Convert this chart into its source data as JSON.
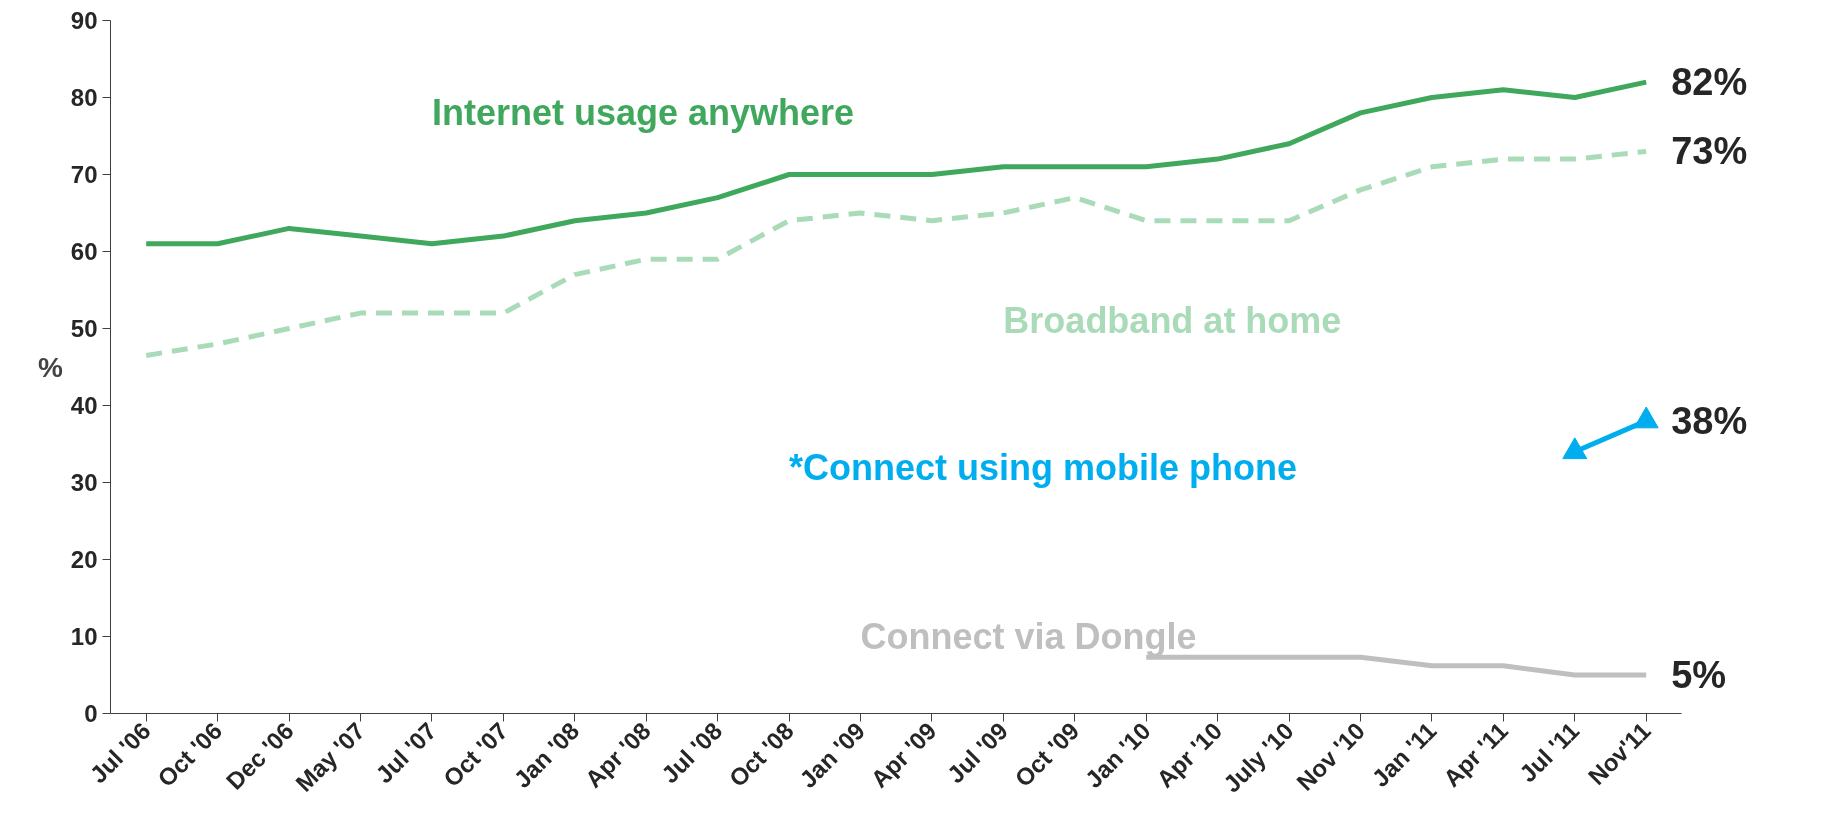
{
  "chart_data": {
    "type": "line",
    "ylabel": "%",
    "categories": [
      "Jul '06",
      "Oct '06",
      "Dec '06",
      "May '07",
      "Jul '07",
      "Oct '07",
      "Jan '08",
      "Apr '08",
      "Jul '08",
      "Oct '08",
      "Jan '09",
      "Apr '09",
      "Jul '09",
      "Oct '09",
      "Jan '10",
      "Apr '10",
      "July '10",
      "Nov '10",
      "Jan '11",
      "Apr '11",
      "Jul '11",
      "Nov'11"
    ],
    "ylim": [
      0,
      90
    ],
    "yticks": [
      0,
      10,
      20,
      30,
      40,
      50,
      60,
      70,
      80,
      90
    ],
    "grid": false,
    "series": [
      {
        "name": "Internet usage anywhere",
        "color": "#3fa85c",
        "line_style": "solid",
        "values": [
          61,
          61,
          63,
          62,
          61,
          62,
          64,
          65,
          67,
          70,
          70,
          70,
          71,
          71,
          71,
          72,
          74,
          78,
          80,
          81,
          80,
          82
        ],
        "value_labels": [
          null,
          null,
          null,
          null,
          null,
          null,
          null,
          null,
          null,
          null,
          null,
          null,
          null,
          null,
          null,
          null,
          null,
          null,
          null,
          null,
          null,
          "82%"
        ]
      },
      {
        "name": "Broadband at home",
        "color": "#a9dbb8",
        "line_style": "dashed",
        "values": [
          46.5,
          48,
          50,
          52,
          52,
          52,
          57,
          59,
          59,
          64,
          65,
          64,
          65,
          67,
          64,
          64,
          64,
          68,
          71,
          72,
          72,
          73
        ],
        "value_labels": [
          null,
          null,
          null,
          null,
          null,
          null,
          null,
          null,
          null,
          null,
          null,
          null,
          null,
          null,
          null,
          null,
          null,
          null,
          null,
          null,
          null,
          "73%"
        ]
      },
      {
        "name": "*Connect using mobile phone",
        "color": "#00aeef",
        "line_style": "solid",
        "marker": "triangle",
        "values": [
          null,
          null,
          null,
          null,
          null,
          null,
          null,
          null,
          null,
          null,
          null,
          null,
          null,
          null,
          null,
          null,
          null,
          null,
          null,
          null,
          34,
          38
        ],
        "value_labels": [
          null,
          null,
          null,
          null,
          null,
          null,
          null,
          null,
          null,
          null,
          null,
          null,
          null,
          null,
          null,
          null,
          null,
          null,
          null,
          null,
          null,
          "38%"
        ]
      },
      {
        "name": "Connect via Dongle",
        "color": "#bfbfbf",
        "line_style": "solid",
        "values": [
          null,
          null,
          null,
          null,
          null,
          null,
          null,
          null,
          null,
          null,
          null,
          null,
          null,
          null,
          7.3,
          7.3,
          7.3,
          7.3,
          6.2,
          6.2,
          5,
          5
        ],
        "value_labels": [
          null,
          null,
          null,
          null,
          null,
          null,
          null,
          null,
          null,
          null,
          null,
          null,
          null,
          null,
          null,
          null,
          null,
          null,
          null,
          null,
          null,
          "5%"
        ]
      }
    ]
  }
}
